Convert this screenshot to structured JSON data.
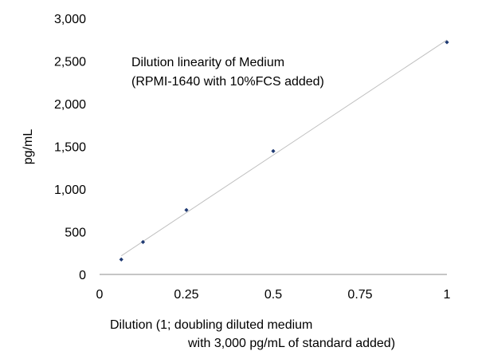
{
  "chart_data": {
    "type": "scatter",
    "title": "",
    "annotation": [
      "Dilution linearity of Medium",
      "(RPMI-1640 with 10%FCS added)"
    ],
    "xlabel": [
      "Dilution (1; doubling diluted medium",
      "with 3,000 pg/mL of standard added)"
    ],
    "ylabel": "pg/mL",
    "xlim": [
      0,
      1
    ],
    "ylim": [
      0,
      3000
    ],
    "x_ticks": [
      0,
      0.25,
      0.5,
      0.75,
      1
    ],
    "x_tick_labels": [
      "0",
      "0.25",
      "0.5",
      "0.75",
      "1"
    ],
    "y_ticks": [
      0,
      500,
      1000,
      1500,
      2000,
      2500,
      3000
    ],
    "y_tick_labels": [
      "0",
      "500",
      "1,000",
      "1,500",
      "2,000",
      "2,500",
      "3,000"
    ],
    "grid": false,
    "trendline": true,
    "series": [
      {
        "x": [
          0.0625,
          0.125,
          0.25,
          0.5,
          1
        ],
        "y": [
          175,
          380,
          755,
          1445,
          2720
        ]
      }
    ],
    "colors": {
      "marker": "#1f3a73",
      "trendline": "#c0c0c0",
      "axis": "#8c8c8c"
    }
  }
}
